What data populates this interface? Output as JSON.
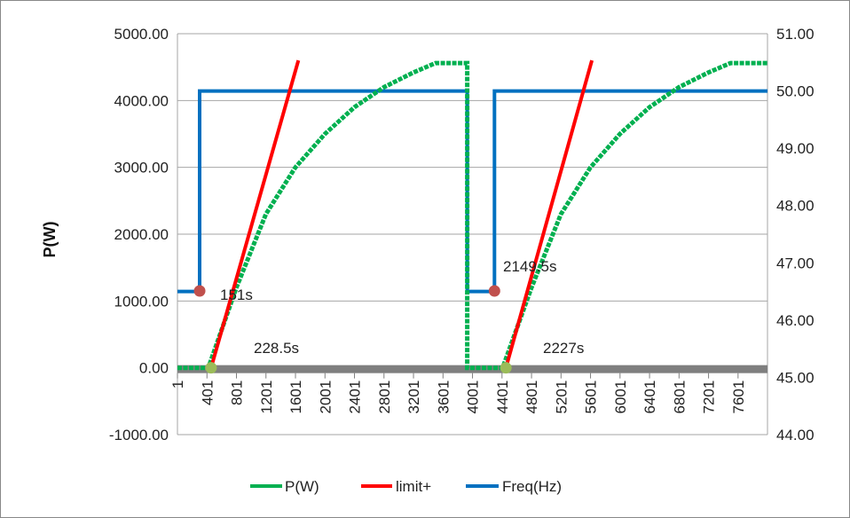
{
  "chart_data": {
    "type": "line",
    "ylabel": "P(W)",
    "ylim": [
      -1000,
      5000
    ],
    "y_ticks": [
      "5000.00",
      "4000.00",
      "3000.00",
      "2000.00",
      "1000.00",
      "0.00",
      "-1000.00"
    ],
    "y2lim": [
      44,
      51
    ],
    "y2_ticks": [
      "51.00",
      "50.00",
      "49.00",
      "48.00",
      "47.00",
      "46.00",
      "45.00",
      "44.00"
    ],
    "xlim": [
      1,
      8000
    ],
    "x_ticks": [
      "1",
      "401",
      "801",
      "1201",
      "1601",
      "2001",
      "2401",
      "2801",
      "3201",
      "3601",
      "4001",
      "4401",
      "4801",
      "5201",
      "5601",
      "6001",
      "6401",
      "6801",
      "7201",
      "7601"
    ],
    "grid": true,
    "legend_position": "bottom",
    "series": [
      {
        "name": "P(W)",
        "color": "#00b050",
        "axis": "left",
        "points": [
          [
            1,
            0
          ],
          [
            420,
            0
          ],
          [
            800,
            1200
          ],
          [
            1200,
            2300
          ],
          [
            1600,
            3000
          ],
          [
            2000,
            3500
          ],
          [
            2400,
            3900
          ],
          [
            2800,
            4200
          ],
          [
            3200,
            4420
          ],
          [
            3500,
            4560
          ],
          [
            3930,
            4560
          ],
          [
            3930,
            0
          ],
          [
            4410,
            0
          ],
          [
            4800,
            1200
          ],
          [
            5200,
            2300
          ],
          [
            5600,
            3000
          ],
          [
            6000,
            3500
          ],
          [
            6400,
            3900
          ],
          [
            6800,
            4200
          ],
          [
            7200,
            4420
          ],
          [
            7500,
            4560
          ],
          [
            8000,
            4560
          ]
        ]
      },
      {
        "name": "limit+",
        "color": "#ff0000",
        "axis": "left",
        "points": [
          [
            457,
            0
          ],
          [
            1640,
            4600
          ],
          [
            4454,
            0
          ],
          [
            5620,
            4600
          ]
        ]
      },
      {
        "name": "Freq(Hz)",
        "color": "#0070c0",
        "axis": "right",
        "points": [
          [
            1,
            46.5
          ],
          [
            302,
            46.5
          ],
          [
            302,
            50.0
          ],
          [
            3930,
            50.0
          ],
          [
            3930,
            46.5
          ],
          [
            4299,
            46.5
          ],
          [
            4299,
            50.0
          ],
          [
            8000,
            50.0
          ]
        ]
      }
    ],
    "markers": [
      {
        "x": 302,
        "y": 1150,
        "color": "#c0504d"
      },
      {
        "x": 4299,
        "y": 1150,
        "color": "#c0504d"
      },
      {
        "x": 457,
        "y": 0,
        "color": "#9bbb59"
      },
      {
        "x": 4454,
        "y": 0,
        "color": "#9bbb59"
      }
    ],
    "annotations": [
      "151s",
      "2149.5s",
      "228.5s",
      "2227s"
    ]
  }
}
